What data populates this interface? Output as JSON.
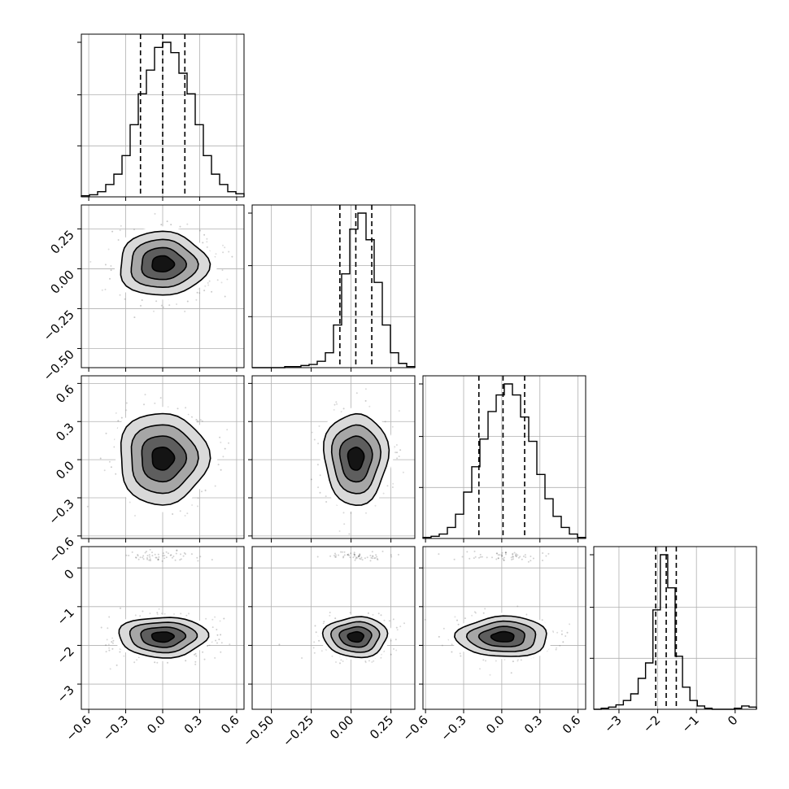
{
  "chart_data": {
    "type": "corner",
    "params": [
      {
        "mean": 0.0,
        "std": 0.18,
        "range": [
          -0.66,
          0.66
        ],
        "quantiles": [
          -0.18,
          0.0,
          0.18
        ],
        "ticks": [
          -0.6,
          -0.3,
          0.0,
          0.3,
          0.6
        ],
        "tick_labels": [
          "−0.6",
          "−0.3",
          "0.0",
          "0.3",
          "0.6"
        ]
      },
      {
        "mean": 0.03,
        "std": 0.1,
        "range": [
          -0.62,
          0.4
        ],
        "quantiles": [
          -0.07,
          0.03,
          0.13
        ],
        "ticks": [
          -0.5,
          -0.25,
          0.0,
          0.25
        ],
        "tick_labels": [
          "−0.50",
          "−0.25",
          "0.00",
          "0.25"
        ]
      },
      {
        "mean": 0.01,
        "std": 0.18,
        "range": [
          -0.62,
          0.66
        ],
        "quantiles": [
          -0.18,
          0.01,
          0.18
        ],
        "ticks": [
          -0.6,
          -0.3,
          0.0,
          0.3,
          0.6
        ],
        "tick_labels": [
          "−0.6",
          "−0.3",
          "0.0",
          "0.3",
          "0.6"
        ]
      },
      {
        "mean": -1.78,
        "std": 0.26,
        "range": [
          -3.65,
          0.55
        ],
        "quantiles": [
          -2.05,
          -1.78,
          -1.52
        ],
        "ticks": [
          -3,
          -2,
          -1,
          0
        ],
        "tick_labels": [
          "−3",
          "−2",
          "−1",
          "0"
        ]
      }
    ],
    "histograms": [
      {
        "param": 0,
        "edges": [
          -0.66,
          0.66
        ],
        "counts": [
          1,
          2,
          5,
          12,
          22,
          40,
          70,
          100,
          123,
          145,
          150,
          140,
          120,
          100,
          70,
          40,
          22,
          12,
          5,
          3
        ]
      },
      {
        "param": 1,
        "edges": [
          -0.62,
          0.4
        ],
        "counts": [
          0,
          0,
          0,
          0,
          1,
          1,
          2,
          3,
          6,
          14,
          40,
          88,
          130,
          145,
          120,
          80,
          40,
          14,
          4,
          1
        ]
      },
      {
        "param": 2,
        "edges": [
          -0.62,
          0.66
        ],
        "counts": [
          1,
          2,
          4,
          10,
          22,
          42,
          65,
          90,
          115,
          130,
          140,
          130,
          110,
          88,
          58,
          36,
          20,
          10,
          4,
          1
        ]
      },
      {
        "param": 3,
        "edges": [
          -3.65,
          0.55
        ],
        "counts": [
          0,
          1,
          2,
          4,
          8,
          14,
          28,
          42,
          90,
          140,
          110,
          48,
          20,
          8,
          3,
          1,
          0,
          0,
          0,
          1,
          3,
          2
        ]
      }
    ],
    "secondary_mode": {
      "param": 3,
      "center": 0.3,
      "fraction": 0.02
    },
    "contour_levels_sigma": [
      0.5,
      1,
      1.5,
      2
    ],
    "grid": true
  }
}
